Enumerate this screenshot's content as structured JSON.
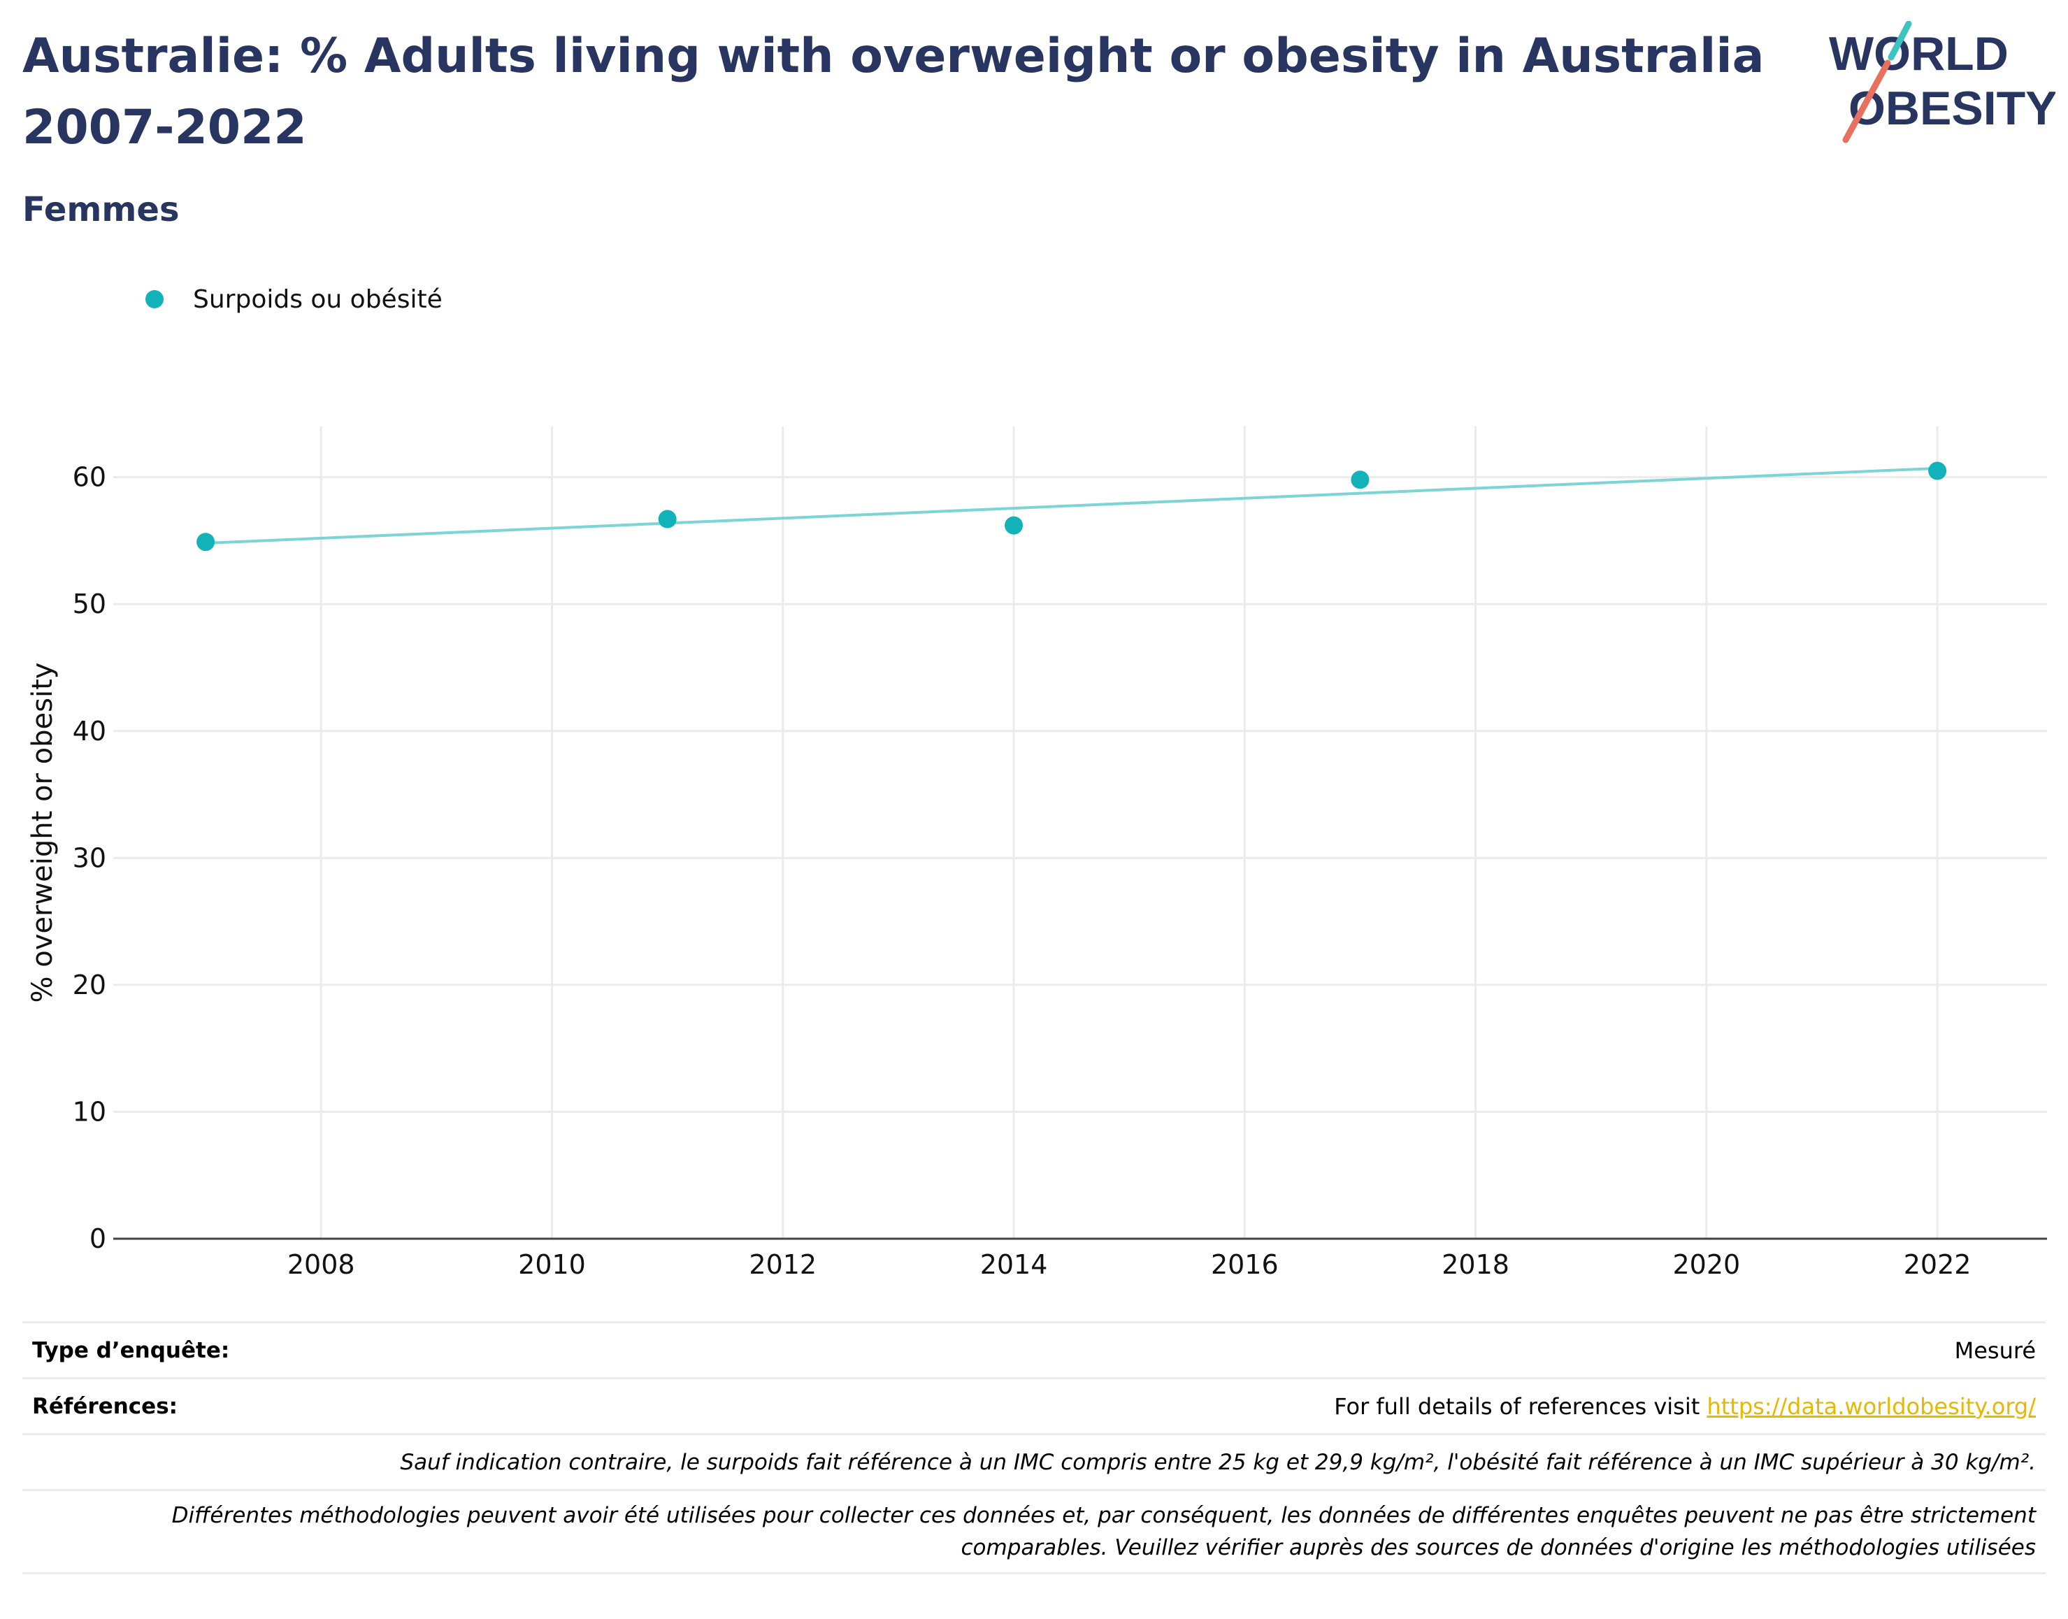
{
  "header": {
    "title": "Australie: % Adults living with overweight or obesity in Australia 2007-2022",
    "subtitle": "Femmes",
    "logo_line1": "WORLD",
    "logo_line2": "OBESITY"
  },
  "colors": {
    "title": "#273560",
    "series": "#12b2bb",
    "trend": "#7dd4d4",
    "logo_teal": "#3cc4c0",
    "logo_coral": "#e8705f",
    "link": "#e6b800"
  },
  "chart_data": {
    "type": "scatter",
    "ylabel": "% overweight or obesity",
    "xlim": [
      2006.2,
      2022.95
    ],
    "ylim": [
      0,
      64
    ],
    "x_ticks": [
      2008,
      2010,
      2012,
      2014,
      2016,
      2018,
      2020,
      2022
    ],
    "y_ticks": [
      0,
      10,
      20,
      30,
      40,
      50,
      60
    ],
    "grid": true,
    "legend_position": "top-left",
    "series": [
      {
        "name": "Surpoids ou obésité",
        "x": [
          2007,
          2011,
          2014,
          2017,
          2022
        ],
        "y": [
          54.9,
          56.7,
          56.2,
          59.8,
          60.5
        ]
      }
    ],
    "trendline": {
      "x": [
        2007,
        2022
      ],
      "y": [
        54.8,
        60.7
      ]
    }
  },
  "info": {
    "survey_type_label": "Type d’enquête:",
    "survey_type_value": "Mesuré",
    "references_label": "Références:",
    "references_text": "For full details of references visit ",
    "references_link": "https://data.worldobesity.org/",
    "note1": "Sauf indication contraire, le surpoids fait référence à un IMC compris entre 25 kg et 29,9 kg/m², l'obésité fait référence à un IMC supérieur à 30 kg/m².",
    "note2_line1": "Différentes méthodologies peuvent avoir été utilisées pour collecter ces données et, par conséquent, les données de différentes enquêtes peuvent ne pas être strictement",
    "note2_line2": "comparables. Veuillez vérifier auprès des sources de données d'origine les méthodologies utilisées"
  }
}
